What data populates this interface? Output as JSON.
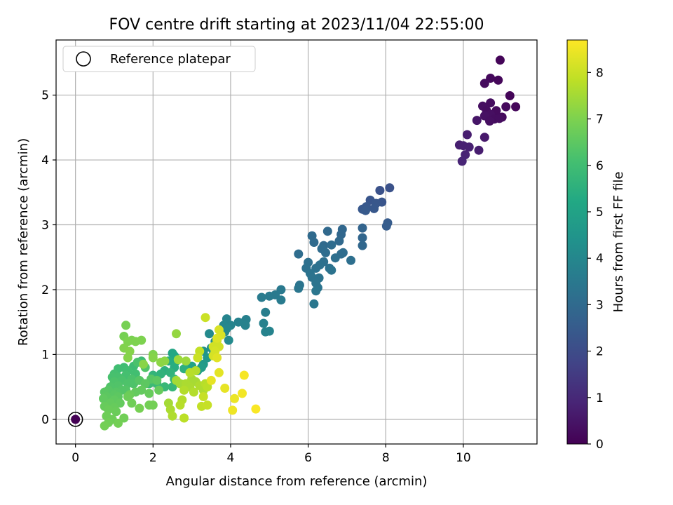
{
  "chart_data": {
    "type": "scatter",
    "title": "FOV centre drift starting at 2023/11/04 22:55:00",
    "xlabel": "Angular distance from reference (arcmin)",
    "ylabel": "Rotation from reference (arcmin)",
    "colorbar_label": "Hours from first FF file",
    "xlim": [
      -0.5,
      11.9
    ],
    "ylim": [
      -0.38,
      5.85
    ],
    "clim": [
      0,
      8.7
    ],
    "xticks": [
      "0",
      "2",
      "4",
      "6",
      "8",
      "10"
    ],
    "yticks": [
      "0",
      "1",
      "2",
      "3",
      "4",
      "5"
    ],
    "cticks": [
      "0",
      "1",
      "2",
      "3",
      "4",
      "5",
      "6",
      "7",
      "8"
    ],
    "grid": true,
    "colormap": "viridis",
    "legend": {
      "placement": "top-left",
      "entries": [
        "Reference platepar"
      ]
    },
    "reference_point": {
      "x": 0,
      "y": 0
    },
    "series": [
      {
        "points": [
          [
            10.95,
            5.54,
            0.1
          ],
          [
            10.7,
            5.26,
            0.2
          ],
          [
            10.9,
            5.23,
            0.15
          ],
          [
            10.55,
            5.18,
            0.25
          ],
          [
            11.2,
            4.99,
            0.1
          ],
          [
            10.7,
            4.88,
            0.3
          ],
          [
            10.5,
            4.83,
            0.35
          ],
          [
            11.1,
            4.82,
            0.2
          ],
          [
            11.35,
            4.82,
            0.15
          ],
          [
            10.6,
            4.76,
            0.3
          ],
          [
            10.85,
            4.76,
            0.25
          ],
          [
            10.7,
            4.7,
            0.35
          ],
          [
            10.55,
            4.68,
            0.4
          ],
          [
            11.0,
            4.66,
            0.2
          ],
          [
            10.8,
            4.63,
            0.3
          ],
          [
            10.68,
            4.6,
            0.35
          ],
          [
            10.93,
            4.64,
            0.3
          ],
          [
            10.35,
            4.61,
            0.5
          ],
          [
            10.55,
            4.35,
            0.6
          ],
          [
            10.1,
            4.39,
            0.7
          ],
          [
            9.9,
            4.23,
            0.75
          ],
          [
            10.0,
            4.22,
            0.8
          ],
          [
            10.15,
            4.2,
            0.8
          ],
          [
            10.4,
            4.15,
            0.7
          ],
          [
            10.05,
            4.08,
            0.85
          ],
          [
            9.97,
            3.98,
            0.9
          ],
          [
            8.1,
            3.57,
            2.2
          ],
          [
            7.85,
            3.53,
            2.2
          ],
          [
            7.6,
            3.38,
            2.3
          ],
          [
            7.9,
            3.35,
            2.3
          ],
          [
            7.75,
            3.33,
            2.35
          ],
          [
            7.5,
            3.28,
            2.4
          ],
          [
            7.4,
            3.24,
            2.4
          ],
          [
            7.7,
            3.25,
            2.4
          ],
          [
            7.48,
            3.22,
            2.45
          ],
          [
            8.05,
            3.03,
            2.5
          ],
          [
            8.02,
            2.98,
            2.55
          ],
          [
            7.4,
            2.95,
            2.8
          ],
          [
            7.4,
            2.8,
            2.85
          ],
          [
            7.4,
            2.68,
            2.9
          ],
          [
            6.88,
            2.93,
            2.9
          ],
          [
            6.85,
            2.85,
            2.9
          ],
          [
            6.5,
            2.9,
            2.95
          ],
          [
            6.8,
            2.75,
            2.95
          ],
          [
            6.1,
            2.83,
            3.0
          ],
          [
            6.15,
            2.73,
            3.0
          ],
          [
            6.4,
            2.68,
            3.0
          ],
          [
            6.6,
            2.69,
            3.05
          ],
          [
            6.35,
            2.63,
            3.05
          ],
          [
            5.75,
            2.55,
            3.1
          ],
          [
            6.45,
            2.57,
            3.1
          ],
          [
            6.9,
            2.57,
            3.1
          ],
          [
            6.85,
            2.55,
            3.1
          ],
          [
            6.7,
            2.49,
            3.15
          ],
          [
            7.1,
            2.45,
            3.15
          ],
          [
            6.0,
            2.42,
            3.2
          ],
          [
            6.4,
            2.43,
            3.2
          ],
          [
            6.3,
            2.38,
            3.25
          ],
          [
            6.2,
            2.33,
            3.25
          ],
          [
            5.95,
            2.33,
            3.25
          ],
          [
            6.55,
            2.33,
            3.25
          ],
          [
            6.6,
            2.3,
            3.3
          ],
          [
            6.05,
            2.25,
            3.3
          ],
          [
            6.1,
            2.19,
            3.3
          ],
          [
            6.28,
            2.18,
            3.3
          ],
          [
            6.2,
            2.1,
            3.35
          ],
          [
            6.25,
            2.03,
            3.35
          ],
          [
            5.78,
            2.07,
            3.35
          ],
          [
            5.75,
            2.02,
            3.4
          ],
          [
            6.2,
            1.98,
            3.4
          ],
          [
            6.15,
            1.78,
            3.45
          ],
          [
            5.3,
            2.0,
            3.5
          ],
          [
            5.0,
            1.9,
            3.55
          ],
          [
            5.15,
            1.92,
            3.55
          ],
          [
            4.8,
            1.88,
            3.6
          ],
          [
            5.3,
            1.84,
            3.6
          ],
          [
            4.9,
            1.65,
            3.7
          ],
          [
            4.4,
            1.54,
            3.75
          ],
          [
            4.35,
            1.5,
            3.75
          ],
          [
            4.2,
            1.5,
            3.8
          ],
          [
            4.38,
            1.45,
            3.8
          ],
          [
            4.85,
            1.48,
            3.8
          ],
          [
            4.9,
            1.35,
            3.85
          ],
          [
            5.0,
            1.36,
            3.85
          ],
          [
            3.9,
            1.55,
            3.9
          ],
          [
            4.0,
            1.45,
            3.9
          ],
          [
            3.82,
            1.45,
            3.95
          ],
          [
            3.9,
            1.4,
            4.0
          ],
          [
            3.85,
            1.35,
            4.05
          ],
          [
            3.75,
            1.3,
            4.1
          ],
          [
            3.45,
            1.32,
            4.1
          ],
          [
            3.95,
            1.22,
            4.1
          ],
          [
            3.6,
            1.2,
            4.2
          ],
          [
            3.5,
            1.1,
            4.3
          ],
          [
            3.3,
            1.05,
            4.4
          ],
          [
            3.55,
            1.0,
            4.5
          ],
          [
            3.4,
            0.95,
            4.6
          ],
          [
            3.3,
            0.85,
            4.7
          ],
          [
            3.25,
            0.8,
            4.8
          ],
          [
            3.15,
            0.75,
            4.9
          ],
          [
            3.0,
            0.82,
            5.0
          ],
          [
            2.5,
            1.02,
            5.1
          ],
          [
            2.55,
            0.98,
            5.2
          ],
          [
            2.6,
            0.9,
            5.3
          ],
          [
            2.4,
            0.9,
            5.35
          ],
          [
            2.55,
            0.8,
            5.4
          ],
          [
            2.8,
            0.78,
            5.5
          ],
          [
            2.3,
            0.75,
            5.5
          ],
          [
            2.45,
            0.72,
            5.6
          ],
          [
            2.2,
            0.7,
            5.6
          ],
          [
            2.0,
            0.68,
            5.65
          ],
          [
            2.55,
            0.62,
            5.7
          ],
          [
            2.5,
            0.5,
            5.75
          ],
          [
            2.3,
            0.5,
            5.8
          ],
          [
            2.1,
            0.55,
            5.85
          ],
          [
            1.9,
            0.55,
            5.9
          ],
          [
            1.7,
            0.9,
            5.9
          ],
          [
            1.5,
            0.82,
            5.95
          ],
          [
            1.25,
            0.8,
            6.0
          ],
          [
            1.1,
            0.78,
            6.0
          ],
          [
            1.35,
            0.75,
            6.05
          ],
          [
            1.55,
            0.7,
            6.05
          ],
          [
            1.3,
            0.68,
            6.1
          ],
          [
            1.0,
            0.7,
            6.1
          ],
          [
            0.95,
            0.65,
            6.15
          ],
          [
            1.1,
            0.65,
            6.15
          ],
          [
            1.45,
            0.62,
            6.2
          ],
          [
            1.2,
            0.6,
            6.2
          ],
          [
            1.0,
            0.58,
            6.25
          ],
          [
            1.5,
            0.55,
            6.25
          ],
          [
            1.35,
            0.55,
            6.25
          ],
          [
            1.1,
            0.52,
            6.3
          ],
          [
            0.9,
            0.5,
            6.3
          ],
          [
            1.2,
            0.45,
            6.35
          ],
          [
            1.3,
            0.45,
            6.35
          ],
          [
            1.05,
            0.42,
            6.4
          ],
          [
            0.85,
            0.45,
            6.4
          ],
          [
            0.75,
            0.42,
            6.45
          ],
          [
            1.0,
            0.38,
            6.45
          ],
          [
            0.8,
            0.35,
            6.5
          ],
          [
            1.1,
            0.35,
            6.5
          ],
          [
            0.72,
            0.32,
            6.55
          ],
          [
            1.0,
            0.3,
            6.55
          ],
          [
            0.9,
            0.25,
            6.6
          ],
          [
            1.15,
            0.25,
            6.6
          ],
          [
            0.75,
            0.2,
            6.65
          ],
          [
            1.0,
            0.18,
            6.65
          ],
          [
            0.85,
            0.15,
            6.7
          ],
          [
            1.05,
            0.12,
            6.7
          ],
          [
            0.8,
            0.05,
            6.75
          ],
          [
            0.95,
            0.0,
            6.75
          ],
          [
            1.25,
            0.02,
            6.8
          ],
          [
            0.85,
            -0.05,
            6.8
          ],
          [
            1.1,
            -0.06,
            6.85
          ],
          [
            0.75,
            -0.1,
            6.85
          ],
          [
            1.6,
            0.88,
            6.2
          ],
          [
            1.8,
            0.8,
            6.3
          ],
          [
            1.65,
            0.6,
            6.4
          ],
          [
            1.95,
            0.62,
            6.4
          ],
          [
            2.1,
            0.6,
            6.5
          ],
          [
            1.8,
            0.55,
            6.5
          ],
          [
            1.7,
            0.45,
            6.6
          ],
          [
            1.55,
            0.42,
            6.6
          ],
          [
            1.9,
            0.4,
            6.65
          ],
          [
            2.15,
            0.45,
            6.65
          ],
          [
            1.4,
            0.38,
            6.7
          ],
          [
            1.35,
            0.35,
            6.75
          ],
          [
            1.45,
            0.25,
            6.8
          ],
          [
            1.9,
            0.22,
            6.85
          ],
          [
            2.0,
            0.22,
            6.85
          ],
          [
            1.65,
            0.17,
            6.9
          ],
          [
            1.3,
            1.45,
            6.9
          ],
          [
            1.25,
            1.28,
            6.9
          ],
          [
            1.45,
            1.22,
            6.95
          ],
          [
            1.35,
            1.2,
            7.0
          ],
          [
            1.55,
            1.2,
            7.0
          ],
          [
            1.7,
            1.22,
            7.0
          ],
          [
            1.25,
            1.1,
            7.05
          ],
          [
            1.4,
            1.05,
            7.1
          ],
          [
            1.35,
            0.95,
            7.1
          ],
          [
            2.0,
            1.0,
            7.0
          ],
          [
            2.0,
            0.95,
            7.1
          ],
          [
            1.75,
            0.85,
            7.15
          ],
          [
            2.2,
            0.88,
            7.2
          ],
          [
            2.3,
            0.9,
            7.2
          ],
          [
            2.6,
            1.32,
            7.3
          ],
          [
            2.65,
            0.92,
            7.4
          ],
          [
            2.85,
            0.9,
            7.4
          ],
          [
            2.6,
            0.6,
            7.5
          ],
          [
            2.7,
            0.55,
            7.5
          ],
          [
            3.0,
            0.62,
            7.55
          ],
          [
            3.1,
            0.58,
            7.55
          ],
          [
            2.85,
            0.55,
            7.6
          ],
          [
            2.95,
            0.5,
            7.6
          ],
          [
            3.2,
            0.52,
            7.65
          ],
          [
            3.3,
            0.45,
            7.65
          ],
          [
            3.05,
            0.42,
            7.7
          ],
          [
            2.8,
            0.45,
            7.7
          ],
          [
            3.1,
            0.75,
            7.7
          ],
          [
            2.95,
            0.72,
            7.75
          ],
          [
            3.35,
            0.55,
            7.75
          ],
          [
            3.4,
            0.5,
            7.8
          ],
          [
            2.4,
            0.25,
            7.5
          ],
          [
            2.45,
            0.15,
            7.6
          ],
          [
            2.5,
            0.05,
            7.65
          ],
          [
            2.75,
            0.3,
            7.7
          ],
          [
            2.7,
            0.22,
            7.75
          ],
          [
            2.8,
            0.02,
            7.8
          ],
          [
            3.25,
            0.2,
            7.9
          ],
          [
            3.4,
            0.22,
            7.95
          ],
          [
            3.3,
            0.35,
            7.95
          ],
          [
            3.2,
            1.05,
            7.9
          ],
          [
            3.15,
            0.95,
            8.0
          ],
          [
            3.35,
            1.57,
            8.0
          ],
          [
            3.65,
            1.22,
            8.05
          ],
          [
            3.7,
            1.12,
            8.1
          ],
          [
            3.55,
            1.12,
            8.1
          ],
          [
            3.6,
            1.05,
            8.15
          ],
          [
            3.55,
            0.98,
            8.15
          ],
          [
            3.7,
            1.38,
            8.2
          ],
          [
            3.75,
            1.3,
            8.2
          ],
          [
            3.65,
            1.25,
            8.25
          ],
          [
            3.65,
            0.95,
            8.3
          ],
          [
            3.7,
            0.72,
            8.35
          ],
          [
            3.85,
            0.48,
            8.4
          ],
          [
            3.5,
            0.6,
            8.4
          ],
          [
            4.1,
            0.32,
            8.45
          ],
          [
            4.05,
            0.14,
            8.5
          ],
          [
            4.3,
            0.4,
            8.55
          ],
          [
            4.35,
            0.68,
            8.6
          ],
          [
            4.65,
            0.16,
            8.65
          ]
        ]
      }
    ]
  }
}
